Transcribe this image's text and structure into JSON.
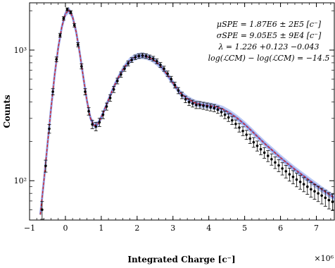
{
  "chart_data": {
    "type": "scatter",
    "xlabel": "Integrated Charge [c⁻]",
    "ylabel": "Counts",
    "x_scale_label": "×10⁶",
    "xlim": [
      -1,
      7.5
    ],
    "ylim": [
      50,
      2300
    ],
    "yscale": "log",
    "grid": false,
    "x_ticks": [
      -1,
      0,
      1,
      2,
      3,
      4,
      5,
      6,
      7
    ],
    "x_tick_labels": [
      "−1",
      "0",
      "1",
      "2",
      "3",
      "4",
      "5",
      "6",
      "7"
    ],
    "y_ticks": [
      100,
      1000
    ],
    "y_tick_labels": [
      "10²",
      "10³"
    ],
    "annotations": [
      "μSPE = 1.87E6 ± 2E5 [c⁻]",
      "σSPE = 9.05E5 ± 9E4 [c⁻]",
      "λ = 1.226 +0.123 −0.043",
      "log(ℒCM) − log(ℒCM) = −14.5"
    ],
    "colors": {
      "data_points": "#000000",
      "fit_line": "#d62728",
      "fit_band": "#a8b8f0",
      "fit_band_core": "#3b5bdb"
    },
    "series": [
      {
        "kind": "data",
        "x": [
          -0.65,
          -0.55,
          -0.45,
          -0.35,
          -0.25,
          -0.15,
          -0.05,
          0.05,
          0.15,
          0.25,
          0.35,
          0.45,
          0.55,
          0.65,
          0.75,
          0.85,
          0.95,
          1.05,
          1.15,
          1.25,
          1.35,
          1.45,
          1.55,
          1.65,
          1.75,
          1.85,
          1.95,
          2.05,
          2.15,
          2.25,
          2.35,
          2.45,
          2.55,
          2.65,
          2.75,
          2.85,
          2.95,
          3.05,
          3.15,
          3.25,
          3.35,
          3.45,
          3.55,
          3.65,
          3.75,
          3.85,
          3.95,
          4.05,
          4.15,
          4.25,
          4.35,
          4.45,
          4.55,
          4.65,
          4.75,
          4.85,
          4.95,
          5.05,
          5.15,
          5.25,
          5.35,
          5.45,
          5.55,
          5.65,
          5.75,
          5.85,
          5.95,
          6.05,
          6.15,
          6.25,
          6.35,
          6.45,
          6.55,
          6.65,
          6.75,
          6.85,
          6.95,
          7.05,
          7.15,
          7.25,
          7.35,
          7.45
        ],
        "y": [
          60,
          130,
          250,
          480,
          850,
          1300,
          1750,
          2050,
          1950,
          1550,
          1100,
          750,
          480,
          340,
          270,
          260,
          280,
          320,
          370,
          430,
          500,
          580,
          650,
          720,
          790,
          840,
          880,
          900,
          910,
          900,
          880,
          860,
          820,
          770,
          720,
          660,
          600,
          540,
          490,
          450,
          420,
          400,
          390,
          380,
          380,
          375,
          370,
          365,
          360,
          350,
          335,
          320,
          305,
          290,
          272,
          255,
          240,
          225,
          210,
          197,
          185,
          174,
          164,
          155,
          146,
          138,
          131,
          124,
          118,
          112,
          107,
          102,
          98,
          94,
          90,
          86,
          83,
          80,
          77,
          74,
          71,
          69
        ]
      },
      {
        "kind": "fit",
        "x": [
          -0.7,
          -0.6,
          -0.5,
          -0.4,
          -0.3,
          -0.2,
          -0.1,
          0.0,
          0.1,
          0.2,
          0.3,
          0.4,
          0.5,
          0.6,
          0.7,
          0.8,
          0.9,
          1.0,
          1.1,
          1.2,
          1.3,
          1.4,
          1.5,
          1.6,
          1.7,
          1.8,
          1.9,
          2.0,
          2.1,
          2.2,
          2.3,
          2.4,
          2.5,
          2.6,
          2.7,
          2.8,
          2.9,
          3.0,
          3.2,
          3.4,
          3.6,
          3.8,
          4.0,
          4.2,
          4.4,
          4.6,
          4.8,
          5.0,
          5.2,
          5.4,
          5.6,
          5.8,
          6.0,
          6.2,
          6.4,
          6.6,
          6.8,
          7.0,
          7.2,
          7.5
        ],
        "y": [
          55,
          100,
          190,
          360,
          650,
          1050,
          1500,
          1900,
          2020,
          1800,
          1380,
          950,
          620,
          410,
          300,
          265,
          270,
          305,
          355,
          415,
          485,
          560,
          635,
          705,
          775,
          830,
          870,
          895,
          905,
          900,
          885,
          860,
          825,
          780,
          730,
          670,
          615,
          560,
          470,
          425,
          395,
          382,
          376,
          368,
          352,
          328,
          300,
          270,
          240,
          212,
          188,
          168,
          150,
          135,
          122,
          111,
          101,
          92,
          84,
          74
        ]
      }
    ]
  }
}
